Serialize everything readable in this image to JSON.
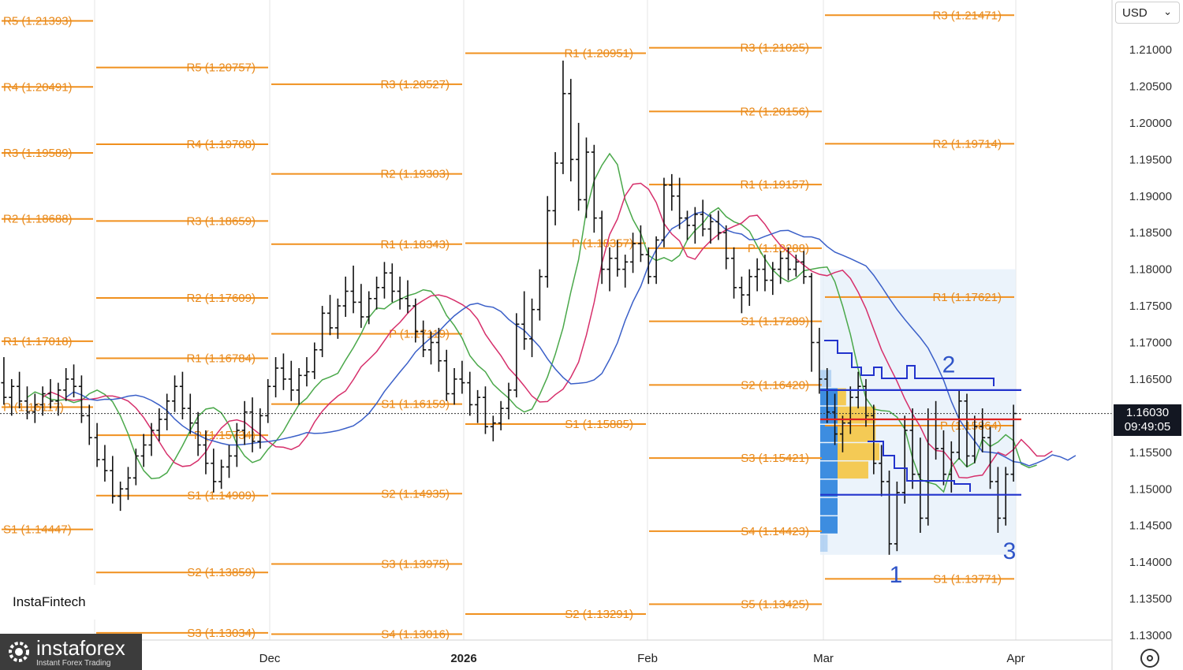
{
  "toolbar": {
    "currency": "USD"
  },
  "price_badge": {
    "price": "1.16030",
    "countdown": "09:49:05"
  },
  "watermarks": {
    "insta_fintech": "InstaFintech",
    "instaforex_name": "instaforex",
    "instaforex_tagline": "Instant Forex Trading"
  },
  "colors": {
    "pivot": "#f0901e",
    "ma_fast": "#4aa84a",
    "ma_mid": "#d62f6b",
    "ma_slow": "#3a5fc8",
    "volume_profile_blue": "#3d8de0",
    "volume_profile_yellow": "#f5c542",
    "box_fill": "#e6f0fa",
    "level_line": "#2233cc",
    "poc_line": "#dd2222"
  },
  "chart_data": {
    "type": "line",
    "instrument_scale": "price",
    "y_axis": {
      "ylim": [
        1.1275,
        1.2165
      ],
      "ticks": [
        "1.21000",
        "1.20500",
        "1.20000",
        "1.19500",
        "1.19000",
        "1.18500",
        "1.18000",
        "1.17500",
        "1.17000",
        "1.16500",
        "1.16000",
        "1.15500",
        "1.15000",
        "1.14500",
        "1.14000",
        "1.13500",
        "1.13000"
      ]
    },
    "x_axis": {
      "ticks": [
        {
          "label": "Dec",
          "bold": false
        },
        {
          "label": "2026",
          "bold": true
        },
        {
          "label": "Feb",
          "bold": false
        },
        {
          "label": "Mar",
          "bold": false
        },
        {
          "label": "Apr",
          "bold": false
        }
      ]
    },
    "current_price": 1.1603,
    "pivot_periods": [
      {
        "period": "Nov",
        "levels": [
          {
            "label": "R5 (1.21393)",
            "value": 1.21393
          },
          {
            "label": "R4 (1.20491)",
            "value": 1.20491
          },
          {
            "label": "R3 (1.19589)",
            "value": 1.19589
          },
          {
            "label": "R2 (1.18688)",
            "value": 1.18688
          },
          {
            "label": "R1 (1.17018)",
            "value": 1.17018
          },
          {
            "label": "P (1.16117)",
            "value": 1.16117
          },
          {
            "label": "S1 (1.14447)",
            "value": 1.14447
          }
        ]
      },
      {
        "period": "Dec",
        "levels": [
          {
            "label": "R5 (1.20757)",
            "value": 1.20757
          },
          {
            "label": "R4 (1.19708)",
            "value": 1.19708
          },
          {
            "label": "R3 (1.18659)",
            "value": 1.18659
          },
          {
            "label": "R2 (1.17609)",
            "value": 1.17609
          },
          {
            "label": "R1 (1.16784)",
            "value": 1.16784
          },
          {
            "label": "P (1.15734)",
            "value": 1.15734
          },
          {
            "label": "S1 (1.14909)",
            "value": 1.14909
          },
          {
            "label": "S2 (1.13859)",
            "value": 1.13859
          },
          {
            "label": "S3 (1.13034)",
            "value": 1.13034
          }
        ]
      },
      {
        "period": "Jan",
        "levels": [
          {
            "label": "R3 (1.20527)",
            "value": 1.20527
          },
          {
            "label": "R2 (1.19303)",
            "value": 1.19303
          },
          {
            "label": "R1 (1.18343)",
            "value": 1.18343
          },
          {
            "label": "P (1.17119)",
            "value": 1.17119
          },
          {
            "label": "S1 (1.16159)",
            "value": 1.16159
          },
          {
            "label": "S2 (1.14935)",
            "value": 1.14935
          },
          {
            "label": "S3 (1.13975)",
            "value": 1.13975
          },
          {
            "label": "S4 (1.13016)",
            "value": 1.13016
          }
        ]
      },
      {
        "period": "Feb",
        "levels": [
          {
            "label": "R1 (1.20951)",
            "value": 1.20951
          },
          {
            "label": "P (1.18357)",
            "value": 1.18357
          },
          {
            "label": "S1 (1.15885)",
            "value": 1.15885
          },
          {
            "label": "S2 (1.13291)",
            "value": 1.13291
          }
        ]
      },
      {
        "period": "Mar",
        "levels": [
          {
            "label": "R3 (1.21025)",
            "value": 1.21025
          },
          {
            "label": "R2 (1.20156)",
            "value": 1.20156
          },
          {
            "label": "R1 (1.19157)",
            "value": 1.19157
          },
          {
            "label": "P (1.18288)",
            "value": 1.18288
          },
          {
            "label": "S1 (1.17289)",
            "value": 1.17289
          },
          {
            "label": "S2 (1.16420)",
            "value": 1.1642
          },
          {
            "label": "S3 (1.15421)",
            "value": 1.15421
          },
          {
            "label": "S4 (1.14423)",
            "value": 1.14423
          },
          {
            "label": "S5 (1.13425)",
            "value": 1.13425
          }
        ]
      },
      {
        "period": "Apr",
        "levels": [
          {
            "label": "R3 (1.21471)",
            "value": 1.21471
          },
          {
            "label": "R2 (1.19714)",
            "value": 1.19714
          },
          {
            "label": "R1 (1.17621)",
            "value": 1.17621
          },
          {
            "label": "P (1.15864)",
            "value": 1.15864
          },
          {
            "label": "S1 (1.13771)",
            "value": 1.13771
          }
        ]
      }
    ],
    "horizontal_levels": [
      {
        "value": 1.1635,
        "color": "level_line"
      },
      {
        "value": 1.1595,
        "color": "poc_line"
      },
      {
        "value": 1.1492,
        "color": "level_line"
      }
    ],
    "wave_labels": [
      {
        "label": "1",
        "price": 1.1383
      },
      {
        "label": "2",
        "price": 1.167
      },
      {
        "label": "3",
        "price": 1.1415
      }
    ],
    "ohlc": [
      [
        1.1645,
        1.168,
        1.1615,
        1.1625
      ],
      [
        1.1625,
        1.165,
        1.16,
        1.164
      ],
      [
        1.164,
        1.166,
        1.161,
        1.162
      ],
      [
        1.162,
        1.164,
        1.1595,
        1.1605
      ],
      [
        1.1605,
        1.163,
        1.159,
        1.1615
      ],
      [
        1.1615,
        1.164,
        1.16,
        1.163
      ],
      [
        1.163,
        1.165,
        1.161,
        1.162
      ],
      [
        1.162,
        1.1645,
        1.16,
        1.1635
      ],
      [
        1.1635,
        1.1665,
        1.162,
        1.165
      ],
      [
        1.165,
        1.167,
        1.1625,
        1.164
      ],
      [
        1.164,
        1.1655,
        1.159,
        1.16
      ],
      [
        1.16,
        1.1615,
        1.156,
        1.157
      ],
      [
        1.157,
        1.159,
        1.153,
        1.154
      ],
      [
        1.154,
        1.156,
        1.151,
        1.1525
      ],
      [
        1.1525,
        1.1545,
        1.148,
        1.149
      ],
      [
        1.149,
        1.151,
        1.147,
        1.15
      ],
      [
        1.15,
        1.153,
        1.1485,
        1.1515
      ],
      [
        1.1515,
        1.1555,
        1.1505,
        1.1545
      ],
      [
        1.1545,
        1.1575,
        1.153,
        1.156
      ],
      [
        1.156,
        1.159,
        1.1545,
        1.158
      ],
      [
        1.158,
        1.161,
        1.1565,
        1.1595
      ],
      [
        1.1595,
        1.163,
        1.158,
        1.162
      ],
      [
        1.162,
        1.1655,
        1.1605,
        1.164
      ],
      [
        1.164,
        1.166,
        1.1595,
        1.161
      ],
      [
        1.161,
        1.163,
        1.1575,
        1.159
      ],
      [
        1.159,
        1.1605,
        1.1545,
        1.156
      ],
      [
        1.156,
        1.158,
        1.152,
        1.1535
      ],
      [
        1.1535,
        1.1555,
        1.1495,
        1.151
      ],
      [
        1.151,
        1.154,
        1.15,
        1.153
      ],
      [
        1.153,
        1.156,
        1.1515,
        1.1545
      ],
      [
        1.1545,
        1.159,
        1.153,
        1.158
      ],
      [
        1.158,
        1.162,
        1.156,
        1.1605
      ],
      [
        1.1605,
        1.1625,
        1.155,
        1.1565
      ],
      [
        1.1565,
        1.161,
        1.1555,
        1.16
      ],
      [
        1.16,
        1.165,
        1.159,
        1.164
      ],
      [
        1.164,
        1.168,
        1.1625,
        1.1665
      ],
      [
        1.1665,
        1.1685,
        1.1635,
        1.165
      ],
      [
        1.165,
        1.1675,
        1.162,
        1.1635
      ],
      [
        1.1635,
        1.1665,
        1.1615,
        1.1655
      ],
      [
        1.1655,
        1.168,
        1.164,
        1.166
      ],
      [
        1.166,
        1.17,
        1.165,
        1.169
      ],
      [
        1.169,
        1.175,
        1.168,
        1.174
      ],
      [
        1.174,
        1.1765,
        1.171,
        1.172
      ],
      [
        1.172,
        1.176,
        1.1705,
        1.175
      ],
      [
        1.175,
        1.179,
        1.1735,
        1.177
      ],
      [
        1.177,
        1.1805,
        1.174,
        1.1755
      ],
      [
        1.1755,
        1.178,
        1.172,
        1.1735
      ],
      [
        1.1735,
        1.177,
        1.1725,
        1.176
      ],
      [
        1.176,
        1.179,
        1.1745,
        1.1775
      ],
      [
        1.1775,
        1.181,
        1.176,
        1.1795
      ],
      [
        1.1795,
        1.1808,
        1.1755,
        1.177
      ],
      [
        1.177,
        1.179,
        1.1745,
        1.176
      ],
      [
        1.176,
        1.1785,
        1.174,
        1.175
      ],
      [
        1.175,
        1.176,
        1.17,
        1.1715
      ],
      [
        1.1715,
        1.173,
        1.168,
        1.169
      ],
      [
        1.169,
        1.1715,
        1.167,
        1.17
      ],
      [
        1.17,
        1.172,
        1.166,
        1.1675
      ],
      [
        1.1675,
        1.169,
        1.162,
        1.163
      ],
      [
        1.163,
        1.1665,
        1.1615,
        1.165
      ],
      [
        1.165,
        1.1675,
        1.163,
        1.1645
      ],
      [
        1.1645,
        1.166,
        1.16,
        1.1615
      ],
      [
        1.1615,
        1.1635,
        1.159,
        1.1625
      ],
      [
        1.1625,
        1.164,
        1.1575,
        1.1585
      ],
      [
        1.1585,
        1.16,
        1.1565,
        1.159
      ],
      [
        1.159,
        1.162,
        1.158,
        1.161
      ],
      [
        1.161,
        1.1645,
        1.1595,
        1.1635
      ],
      [
        1.1635,
        1.174,
        1.1625,
        1.1725
      ],
      [
        1.1725,
        1.177,
        1.169,
        1.1705
      ],
      [
        1.1705,
        1.176,
        1.168,
        1.1745
      ],
      [
        1.1745,
        1.18,
        1.173,
        1.179
      ],
      [
        1.179,
        1.19,
        1.1775,
        1.188
      ],
      [
        1.188,
        1.196,
        1.186,
        1.1945
      ],
      [
        1.1945,
        1.2085,
        1.193,
        1.204
      ],
      [
        1.204,
        1.206,
        1.192,
        1.195
      ],
      [
        1.195,
        1.2,
        1.188,
        1.1895
      ],
      [
        1.1895,
        1.198,
        1.187,
        1.196
      ],
      [
        1.196,
        1.197,
        1.185,
        1.187
      ],
      [
        1.187,
        1.188,
        1.178,
        1.18
      ],
      [
        1.18,
        1.183,
        1.177,
        1.1815
      ],
      [
        1.1815,
        1.184,
        1.179,
        1.18
      ],
      [
        1.18,
        1.182,
        1.1775,
        1.181
      ],
      [
        1.181,
        1.185,
        1.1795,
        1.1835
      ],
      [
        1.1835,
        1.186,
        1.181,
        1.182
      ],
      [
        1.182,
        1.183,
        1.178,
        1.179
      ],
      [
        1.179,
        1.1845,
        1.178,
        1.184
      ],
      [
        1.184,
        1.1925,
        1.183,
        1.1915
      ],
      [
        1.1915,
        1.193,
        1.188,
        1.19
      ],
      [
        1.19,
        1.1925,
        1.1855,
        1.187
      ],
      [
        1.187,
        1.188,
        1.184,
        1.186
      ],
      [
        1.186,
        1.1885,
        1.1835,
        1.1875
      ],
      [
        1.1875,
        1.1895,
        1.1845,
        1.1855
      ],
      [
        1.1855,
        1.1875,
        1.1835,
        1.1865
      ],
      [
        1.1865,
        1.188,
        1.184,
        1.185
      ],
      [
        1.185,
        1.186,
        1.18,
        1.1815
      ],
      [
        1.1815,
        1.183,
        1.176,
        1.1775
      ],
      [
        1.1775,
        1.179,
        1.174,
        1.1765
      ],
      [
        1.1765,
        1.18,
        1.175,
        1.179
      ],
      [
        1.179,
        1.1815,
        1.177,
        1.18
      ],
      [
        1.18,
        1.182,
        1.177,
        1.1785
      ],
      [
        1.1785,
        1.181,
        1.1765,
        1.18
      ],
      [
        1.18,
        1.1825,
        1.178,
        1.1815
      ],
      [
        1.1815,
        1.183,
        1.1785,
        1.18
      ],
      [
        1.18,
        1.182,
        1.179,
        1.181
      ],
      [
        1.181,
        1.1825,
        1.178,
        1.179
      ],
      [
        1.179,
        1.1795,
        1.166,
        1.17
      ],
      [
        1.17,
        1.172,
        1.163,
        1.165
      ],
      [
        1.165,
        1.1665,
        1.159,
        1.1605
      ],
      [
        1.1605,
        1.163,
        1.156,
        1.1575
      ],
      [
        1.1575,
        1.16,
        1.155,
        1.159
      ],
      [
        1.159,
        1.164,
        1.1575,
        1.1625
      ],
      [
        1.1625,
        1.166,
        1.161,
        1.164
      ],
      [
        1.164,
        1.165,
        1.1585,
        1.16
      ],
      [
        1.16,
        1.1615,
        1.152,
        1.1535
      ],
      [
        1.1535,
        1.156,
        1.149,
        1.151
      ],
      [
        1.151,
        1.1525,
        1.141,
        1.1425
      ],
      [
        1.1425,
        1.151,
        1.1415,
        1.1495
      ],
      [
        1.1495,
        1.16,
        1.148,
        1.158
      ],
      [
        1.158,
        1.161,
        1.15,
        1.152
      ],
      [
        1.152,
        1.157,
        1.144,
        1.146
      ],
      [
        1.146,
        1.161,
        1.145,
        1.1595
      ],
      [
        1.1595,
        1.162,
        1.154,
        1.1555
      ],
      [
        1.1555,
        1.158,
        1.1505,
        1.152
      ],
      [
        1.152,
        1.1565,
        1.1495,
        1.155
      ],
      [
        1.155,
        1.1635,
        1.154,
        1.162
      ],
      [
        1.162,
        1.163,
        1.153,
        1.1545
      ],
      [
        1.1545,
        1.16,
        1.1535,
        1.1585
      ],
      [
        1.1585,
        1.161,
        1.155,
        1.157
      ],
      [
        1.157,
        1.1585,
        1.15,
        1.151
      ],
      [
        1.151,
        1.153,
        1.144,
        1.146
      ],
      [
        1.146,
        1.153,
        1.145,
        1.152
      ],
      [
        1.152,
        1.1615,
        1.151,
        1.1603
      ]
    ]
  }
}
